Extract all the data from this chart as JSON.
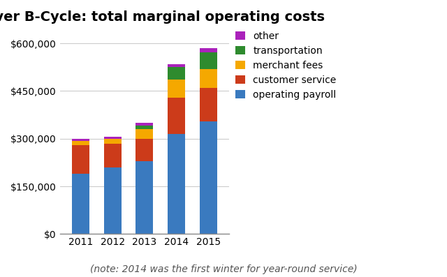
{
  "title": "Denver B-Cycle: total marginal operating costs",
  "years": [
    "2011",
    "2012",
    "2013",
    "2014",
    "2015"
  ],
  "categories": [
    "operating payroll",
    "customer service",
    "merchant fees",
    "transportation",
    "other"
  ],
  "colors": [
    "#3a7abf",
    "#cc3b1a",
    "#f5a800",
    "#2e8b2e",
    "#aa22bb"
  ],
  "values": {
    "operating payroll": [
      190000,
      210000,
      230000,
      315000,
      355000
    ],
    "customer service": [
      90000,
      75000,
      70000,
      115000,
      105000
    ],
    "merchant fees": [
      12000,
      15000,
      30000,
      55000,
      60000
    ],
    "transportation": [
      0,
      0,
      12000,
      40000,
      52000
    ],
    "other": [
      8000,
      5000,
      8000,
      10000,
      12000
    ]
  },
  "ylim": [
    0,
    640000
  ],
  "yticks": [
    0,
    150000,
    300000,
    450000,
    600000
  ],
  "note": "(note: 2014 was the first winter for year-round service)",
  "background_color": "#ffffff",
  "grid_color": "#cccccc",
  "title_fontsize": 14,
  "tick_fontsize": 10,
  "note_fontsize": 10,
  "legend_fontsize": 10
}
